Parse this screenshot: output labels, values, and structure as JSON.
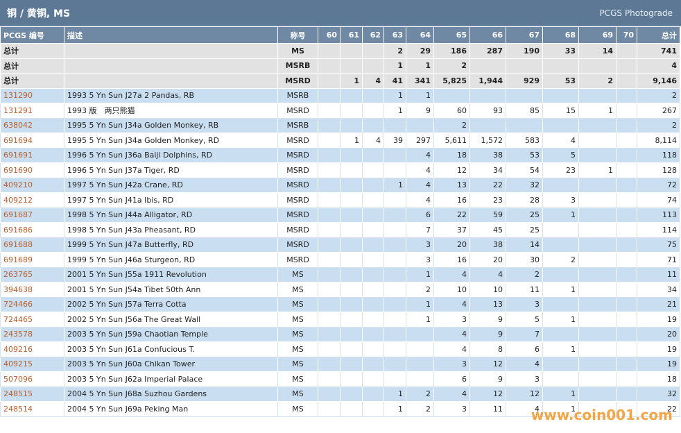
{
  "header": {
    "title": "铜 / 黄铜, MS",
    "link": "PCGS Photograde"
  },
  "table": {
    "columns": [
      "PCGS 编号",
      "描述",
      "称号",
      "60",
      "61",
      "62",
      "63",
      "64",
      "65",
      "66",
      "67",
      "68",
      "69",
      "70",
      "总计"
    ],
    "summary_rows": [
      [
        "总计",
        null,
        "MS",
        null,
        null,
        null,
        "2",
        "29",
        "186",
        "287",
        "190",
        "33",
        "14",
        null,
        "741"
      ],
      [
        "总计",
        null,
        "MSRB",
        null,
        null,
        null,
        "1",
        "1",
        "2",
        null,
        null,
        null,
        null,
        null,
        "4"
      ],
      [
        "总计",
        null,
        "MSRD",
        null,
        "1",
        "4",
        "41",
        "341",
        "5,825",
        "1,944",
        "929",
        "53",
        "2",
        null,
        "9,146"
      ]
    ],
    "rows": [
      [
        "131290",
        "1993 5 Yn Sun J27a 2 Pandas, RB",
        "MSRB",
        null,
        null,
        null,
        "1",
        "1",
        null,
        null,
        null,
        null,
        null,
        null,
        "2"
      ],
      [
        "131291",
        "1993 版　两只熊猫",
        "MSRD",
        null,
        null,
        null,
        "1",
        "9",
        "60",
        "93",
        "85",
        "15",
        "1",
        null,
        "267"
      ],
      [
        "638042",
        "1995 5 Yn Sun J34a Golden Monkey, RB",
        "MSRB",
        null,
        null,
        null,
        null,
        null,
        "2",
        null,
        null,
        null,
        null,
        null,
        "2"
      ],
      [
        "691694",
        "1995 5 Yn Sun J34a Golden Monkey, RD",
        "MSRD",
        null,
        "1",
        "4",
        "39",
        "297",
        "5,611",
        "1,572",
        "583",
        "4",
        null,
        null,
        "8,114"
      ],
      [
        "691691",
        "1996 5 Yn Sun J36a Baiji Dolphins, RD",
        "MSRD",
        null,
        null,
        null,
        null,
        "4",
        "18",
        "38",
        "53",
        "5",
        null,
        null,
        "118"
      ],
      [
        "691690",
        "1996 5 Yn Sun J37a Tiger, RD",
        "MSRD",
        null,
        null,
        null,
        null,
        "4",
        "12",
        "34",
        "54",
        "23",
        "1",
        null,
        "128"
      ],
      [
        "409210",
        "1997 5 Yn Sun J42a Crane, RD",
        "MSRD",
        null,
        null,
        null,
        "1",
        "4",
        "13",
        "22",
        "32",
        null,
        null,
        null,
        "72"
      ],
      [
        "409212",
        "1997 5 Yn Sun J41a Ibis, RD",
        "MSRD",
        null,
        null,
        null,
        null,
        "4",
        "16",
        "23",
        "28",
        "3",
        null,
        null,
        "74"
      ],
      [
        "691687",
        "1998 5 Yn Sun J44a Alligator, RD",
        "MSRD",
        null,
        null,
        null,
        null,
        "6",
        "22",
        "59",
        "25",
        "1",
        null,
        null,
        "113"
      ],
      [
        "691686",
        "1998 5 Yn Sun J43a Pheasant, RD",
        "MSRD",
        null,
        null,
        null,
        null,
        "7",
        "37",
        "45",
        "25",
        null,
        null,
        null,
        "114"
      ],
      [
        "691688",
        "1999 5 Yn Sun J47a Butterfly, RD",
        "MSRD",
        null,
        null,
        null,
        null,
        "3",
        "20",
        "38",
        "14",
        null,
        null,
        null,
        "75"
      ],
      [
        "691689",
        "1999 5 Yn Sun J46a Sturgeon, RD",
        "MSRD",
        null,
        null,
        null,
        null,
        "3",
        "16",
        "20",
        "30",
        "2",
        null,
        null,
        "71"
      ],
      [
        "263765",
        "2001 5 Yn Sun J55a 1911 Revolution",
        "MS",
        null,
        null,
        null,
        null,
        "1",
        "4",
        "4",
        "2",
        null,
        null,
        null,
        "11"
      ],
      [
        "394638",
        "2001 5 Yn Sun J54a Tibet 50th Ann",
        "MS",
        null,
        null,
        null,
        null,
        "2",
        "10",
        "10",
        "11",
        "1",
        null,
        null,
        "34"
      ],
      [
        "724466",
        "2002 5 Yn Sun J57a Terra Cotta",
        "MS",
        null,
        null,
        null,
        null,
        "1",
        "4",
        "13",
        "3",
        null,
        null,
        null,
        "21"
      ],
      [
        "724465",
        "2002 5 Yn Sun J56a The Great Wall",
        "MS",
        null,
        null,
        null,
        null,
        "1",
        "3",
        "9",
        "5",
        "1",
        null,
        null,
        "19"
      ],
      [
        "243578",
        "2003 5 Yn Sun J59a Chaotian Temple",
        "MS",
        null,
        null,
        null,
        null,
        null,
        "4",
        "9",
        "7",
        null,
        null,
        null,
        "20"
      ],
      [
        "409216",
        "2003 5 Yn Sun J61a Confucious T.",
        "MS",
        null,
        null,
        null,
        null,
        null,
        "4",
        "8",
        "6",
        "1",
        null,
        null,
        "19"
      ],
      [
        "409215",
        "2003 5 Yn Sun J60a Chikan Tower",
        "MS",
        null,
        null,
        null,
        null,
        null,
        "3",
        "12",
        "4",
        null,
        null,
        null,
        "19"
      ],
      [
        "507096",
        "2003 5 Yn Sun J62a Imperial Palace",
        "MS",
        null,
        null,
        null,
        null,
        null,
        "6",
        "9",
        "3",
        null,
        null,
        null,
        "18"
      ],
      [
        "248515",
        "2004 5 Yn Sun J68a Suzhou Gardens",
        "MS",
        null,
        null,
        null,
        "1",
        "2",
        "4",
        "12",
        "12",
        "1",
        null,
        null,
        "32"
      ],
      [
        "248514",
        "2004 5 Yn Sun J69a Peking Man",
        "MS",
        null,
        null,
        null,
        "1",
        "2",
        "3",
        "11",
        "4",
        "1",
        null,
        null,
        "22"
      ]
    ]
  },
  "watermark": "www.coin001.com"
}
